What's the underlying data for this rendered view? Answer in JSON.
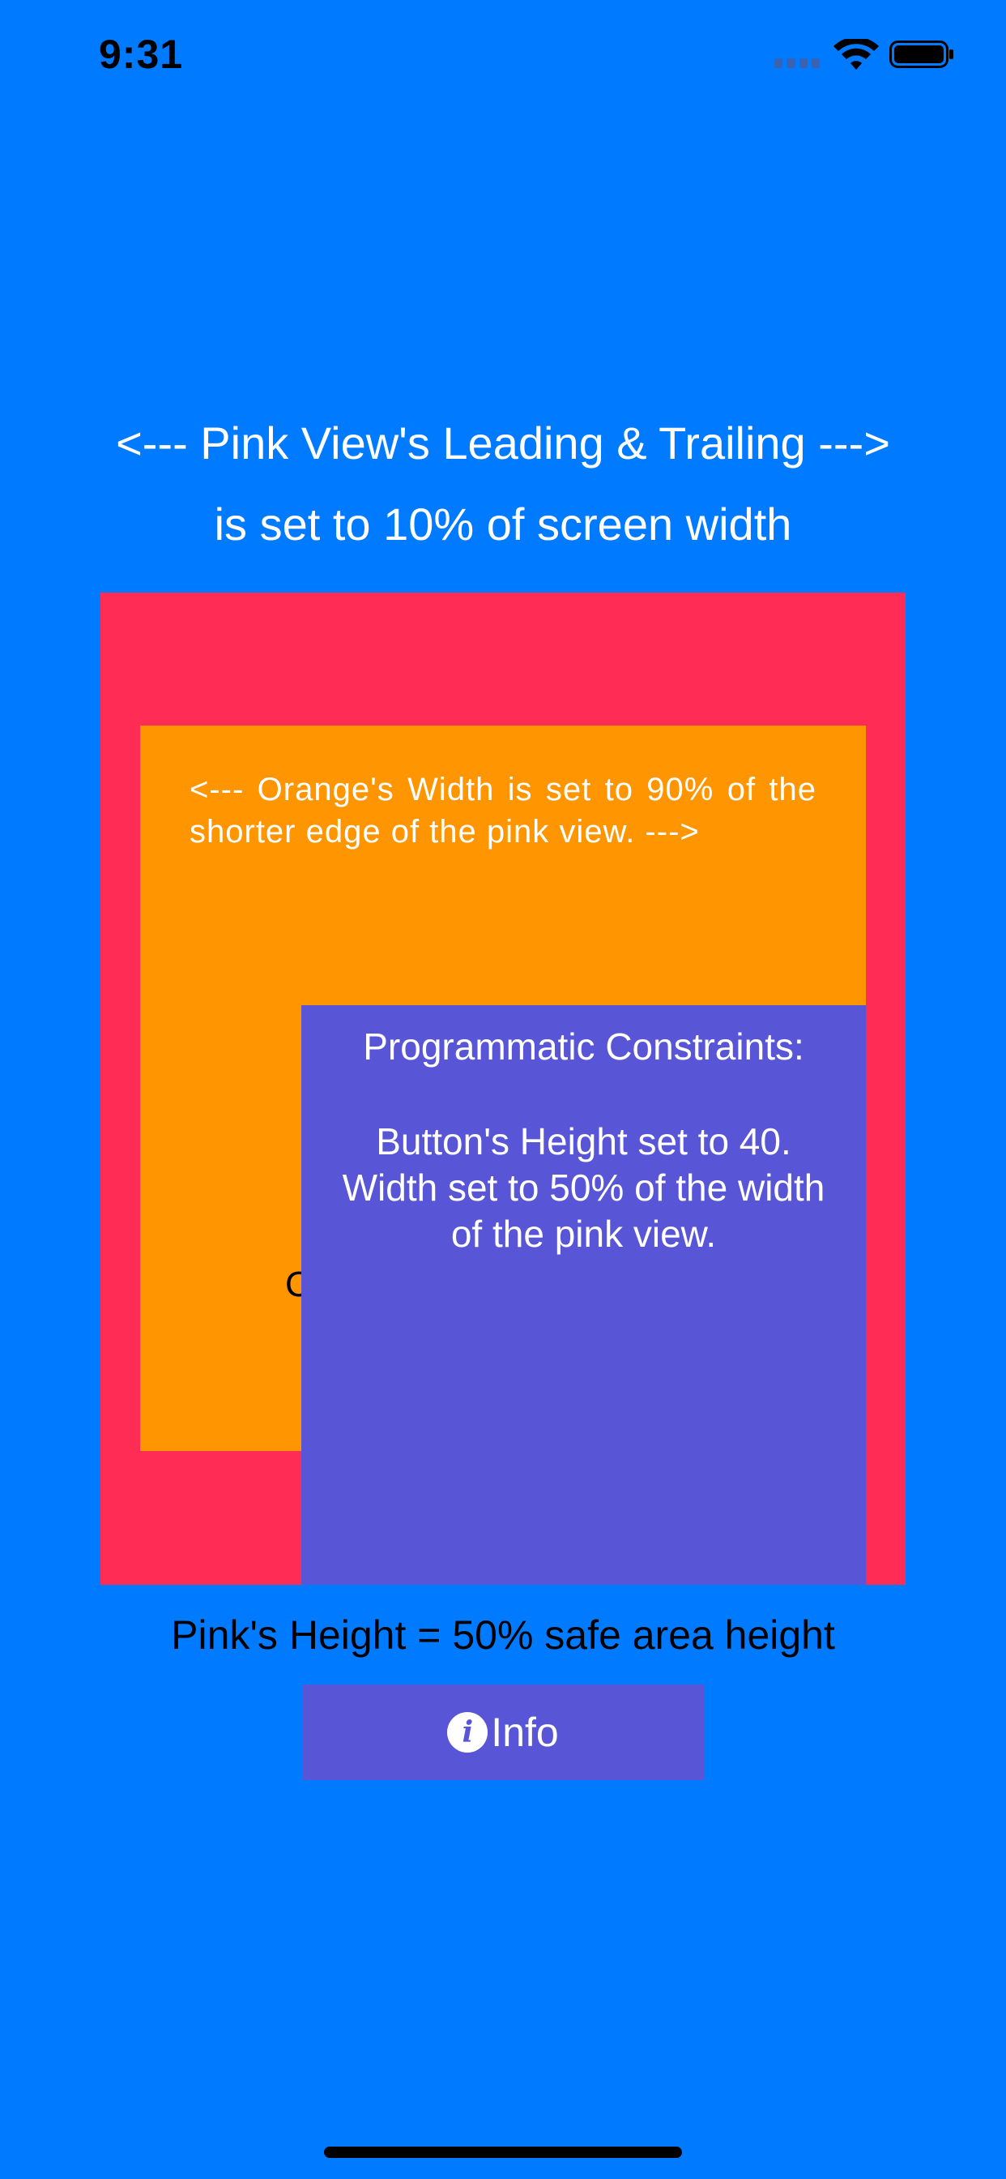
{
  "status_bar": {
    "time": "9:31"
  },
  "header": {
    "line1": "<--- Pink View's Leading & Trailing --->",
    "line2": "is set to 10% of screen width"
  },
  "orange_view": {
    "text": "<--- Orange's Width is set to 90% of the shorter edge of the pink view. --->",
    "partial_char": "C"
  },
  "purple_view": {
    "title": "Programmatic Constraints:",
    "body_line1": "Button's Height set to 40.",
    "body_line2": "Width set to 50% of the width",
    "body_line3": "of the pink view."
  },
  "footer": {
    "pink_height_label": "Pink's Height = 50% safe area height"
  },
  "info_button": {
    "icon": "info-icon",
    "label": "Info"
  },
  "colors": {
    "background": "#007AFF",
    "pink": "#FF2D55",
    "orange": "#FF9500",
    "purple": "#5856D6"
  }
}
